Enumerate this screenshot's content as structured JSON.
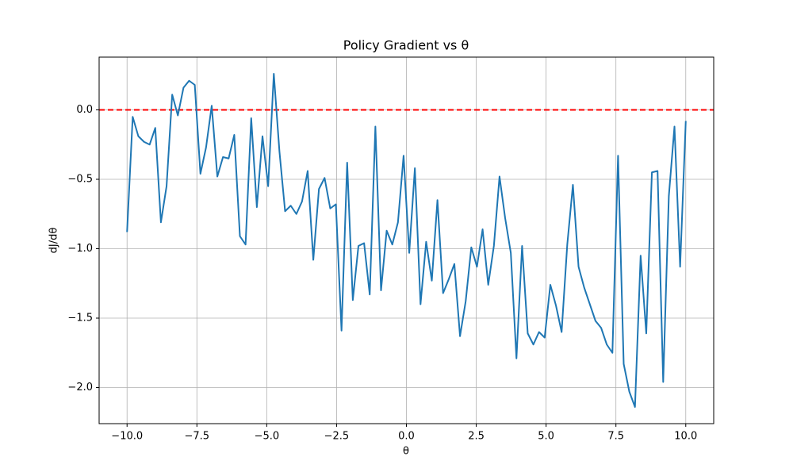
{
  "chart_data": {
    "type": "line",
    "title": "Policy Gradient vs θ",
    "x_label": "θ",
    "y_label": "dJ/dθ",
    "x": [
      -10,
      -9.798,
      -9.596,
      -9.394,
      -9.192,
      -8.99,
      -8.788,
      -8.586,
      -8.384,
      -8.182,
      -7.98,
      -7.778,
      -7.576,
      -7.374,
      -7.172,
      -6.97,
      -6.768,
      -6.566,
      -6.364,
      -6.162,
      -5.96,
      -5.758,
      -5.556,
      -5.354,
      -5.152,
      -4.949,
      -4.747,
      -4.545,
      -4.343,
      -4.141,
      -3.939,
      -3.737,
      -3.535,
      -3.333,
      -3.131,
      -2.929,
      -2.727,
      -2.525,
      -2.323,
      -2.121,
      -1.919,
      -1.717,
      -1.515,
      -1.313,
      -1.111,
      -0.909,
      -0.707,
      -0.505,
      -0.303,
      -0.101,
      0.101,
      0.303,
      0.505,
      0.707,
      0.909,
      1.111,
      1.313,
      1.515,
      1.717,
      1.919,
      2.121,
      2.323,
      2.525,
      2.727,
      2.929,
      3.131,
      3.333,
      3.535,
      3.737,
      3.939,
      4.141,
      4.343,
      4.545,
      4.747,
      4.949,
      5.152,
      5.354,
      5.556,
      5.758,
      5.96,
      6.162,
      6.364,
      6.566,
      6.768,
      6.97,
      7.172,
      7.374,
      7.576,
      7.778,
      7.98,
      8.182,
      8.384,
      8.586,
      8.788,
      8.99,
      9.192,
      9.394,
      9.596,
      9.798,
      10
    ],
    "series": [
      {
        "name": "dJ/dθ",
        "color": "#1f77b4",
        "values": [
          -0.88,
          -0.05,
          -0.19,
          -0.23,
          -0.25,
          -0.13,
          -0.81,
          -0.55,
          0.11,
          -0.04,
          0.16,
          0.21,
          0.18,
          -0.46,
          -0.27,
          0.03,
          -0.48,
          -0.34,
          -0.35,
          -0.18,
          -0.91,
          -0.97,
          -0.06,
          -0.7,
          -0.19,
          -0.55,
          0.26,
          -0.3,
          -0.73,
          -0.69,
          -0.75,
          -0.66,
          -0.44,
          -1.08,
          -0.57,
          -0.49,
          -0.71,
          -0.68,
          -1.59,
          -0.38,
          -1.37,
          -0.98,
          -0.96,
          -1.33,
          -0.12,
          -1.3,
          -0.87,
          -0.97,
          -0.81,
          -0.33,
          -1.03,
          -0.42,
          -1.4,
          -0.95,
          -1.23,
          -0.65,
          -1.32,
          -1.22,
          -1.11,
          -1.63,
          -1.38,
          -0.99,
          -1.13,
          -0.86,
          -1.26,
          -0.98,
          -0.48,
          -0.78,
          -1.03,
          -1.79,
          -0.98,
          -1.61,
          -1.69,
          -1.6,
          -1.64,
          -1.26,
          -1.41,
          -1.6,
          -0.97,
          -0.54,
          -1.13,
          -1.28,
          -1.4,
          -1.52,
          -1.57,
          -1.69,
          -1.75,
          -0.33,
          -1.83,
          -2.03,
          -2.14,
          -1.05,
          -1.61,
          -0.45,
          -0.44,
          -1.96,
          -0.62,
          -0.12,
          -1.13,
          -0.08
        ]
      }
    ],
    "hline": {
      "value": 0,
      "color": "#ff0000"
    },
    "xlim": [
      -11,
      11
    ],
    "ylim": [
      -2.26,
      0.38
    ],
    "xticks": [
      {
        "value": -10,
        "label": "−10.0"
      },
      {
        "value": -7.5,
        "label": "−7.5"
      },
      {
        "value": -5,
        "label": "−5.0"
      },
      {
        "value": -2.5,
        "label": "−2.5"
      },
      {
        "value": 0,
        "label": "0.0"
      },
      {
        "value": 2.5,
        "label": "2.5"
      },
      {
        "value": 5,
        "label": "5.0"
      },
      {
        "value": 7.5,
        "label": "7.5"
      },
      {
        "value": 10,
        "label": "10.0"
      }
    ],
    "yticks": [
      {
        "value": -2,
        "label": "−2.0"
      },
      {
        "value": -1.5,
        "label": "−1.5"
      },
      {
        "value": -1,
        "label": "−1.0"
      },
      {
        "value": -0.5,
        "label": "−0.5"
      },
      {
        "value": 0,
        "label": "0.0"
      }
    ],
    "grid": true
  }
}
